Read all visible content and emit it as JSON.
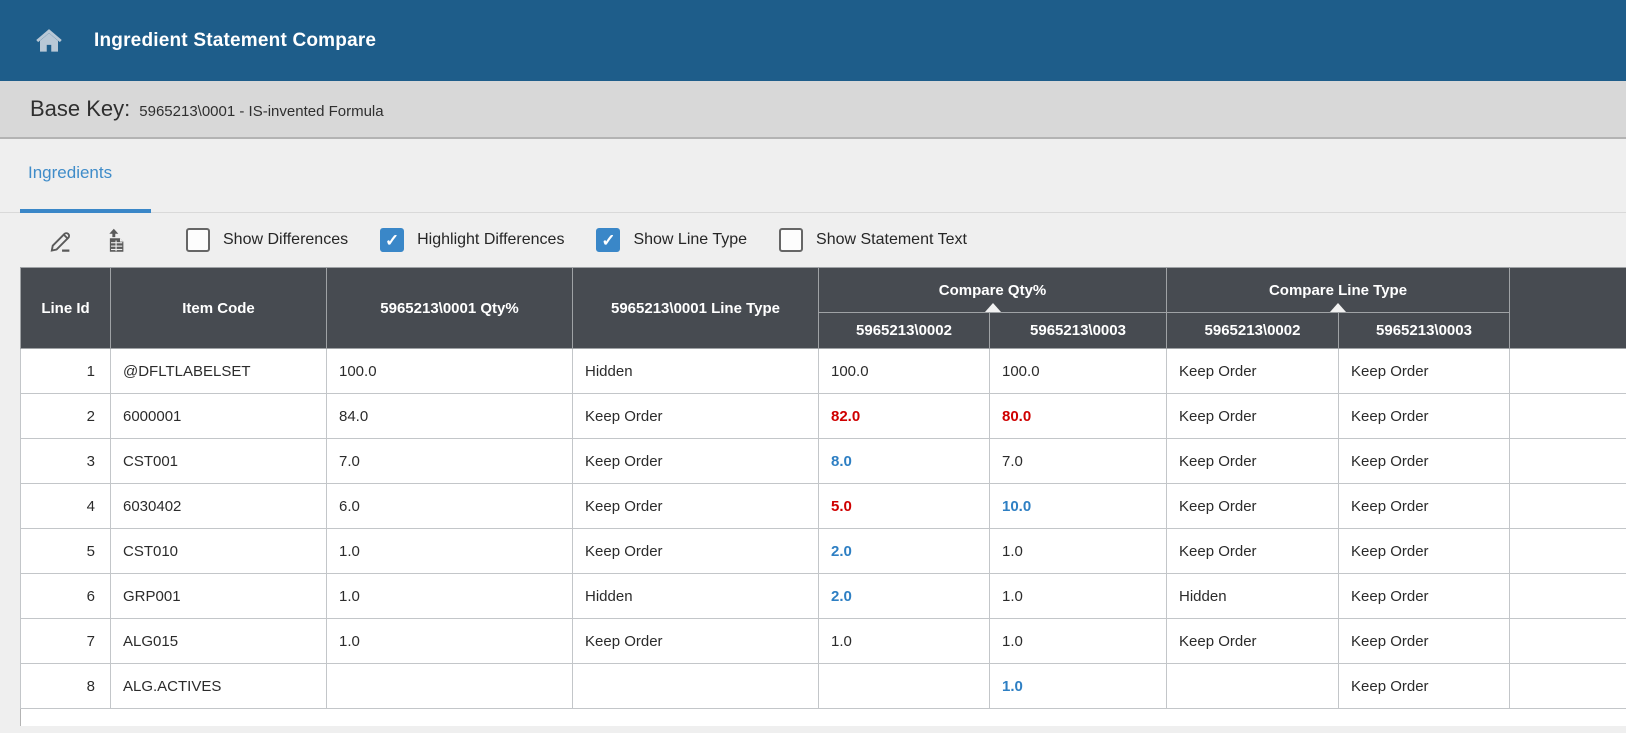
{
  "app": {
    "title": "Ingredient Statement Compare"
  },
  "base_key": {
    "label": "Base Key:",
    "value": "5965213\\0001 - IS-invented Formula"
  },
  "tabs": [
    {
      "label": "Ingredients",
      "active": true
    }
  ],
  "toolbar": {
    "buttons": [
      {
        "name": "edit"
      },
      {
        "name": "export-spreadsheet"
      }
    ],
    "checkboxes": [
      {
        "label": "Show Differences",
        "checked": false
      },
      {
        "label": "Highlight Differences",
        "checked": true
      },
      {
        "label": "Show Line Type",
        "checked": true
      },
      {
        "label": "Show Statement Text",
        "checked": false
      }
    ]
  },
  "colors": {
    "header_blue": "#1e5d8a",
    "accent_blue": "#3a87c8",
    "table_header_gray": "#474b51",
    "diff_higher_blue": "#2e7fc3",
    "diff_lower_red": "#cf0000"
  },
  "table": {
    "columns": [
      "Line Id",
      "Item Code",
      "5965213\\0001 Qty%",
      "5965213\\0001 Line Type"
    ],
    "groups": [
      {
        "label": "Compare Qty%",
        "children": [
          "5965213\\0002",
          "5965213\\0003"
        ]
      },
      {
        "label": "Compare Line Type",
        "children": [
          "5965213\\0002",
          "5965213\\0003"
        ]
      }
    ],
    "rows": [
      {
        "line_id": "1",
        "item_code": "@DFLTLABELSET",
        "qty": "100.0",
        "line_type": "Hidden",
        "compare_qty": [
          {
            "v": "100.0",
            "diff": ""
          },
          {
            "v": "100.0",
            "diff": ""
          }
        ],
        "compare_line_type": [
          {
            "v": "Keep Order",
            "diff": ""
          },
          {
            "v": "Keep Order",
            "diff": ""
          }
        ]
      },
      {
        "line_id": "2",
        "item_code": "6000001",
        "qty": "84.0",
        "line_type": "Keep Order",
        "compare_qty": [
          {
            "v": "82.0",
            "diff": "lower"
          },
          {
            "v": "80.0",
            "diff": "lower"
          }
        ],
        "compare_line_type": [
          {
            "v": "Keep Order",
            "diff": ""
          },
          {
            "v": "Keep Order",
            "diff": ""
          }
        ]
      },
      {
        "line_id": "3",
        "item_code": "CST001",
        "qty": "7.0",
        "line_type": "Keep Order",
        "compare_qty": [
          {
            "v": "8.0",
            "diff": "higher"
          },
          {
            "v": "7.0",
            "diff": ""
          }
        ],
        "compare_line_type": [
          {
            "v": "Keep Order",
            "diff": ""
          },
          {
            "v": "Keep Order",
            "diff": ""
          }
        ]
      },
      {
        "line_id": "4",
        "item_code": "6030402",
        "qty": "6.0",
        "line_type": "Keep Order",
        "compare_qty": [
          {
            "v": "5.0",
            "diff": "lower"
          },
          {
            "v": "10.0",
            "diff": "higher"
          }
        ],
        "compare_line_type": [
          {
            "v": "Keep Order",
            "diff": ""
          },
          {
            "v": "Keep Order",
            "diff": ""
          }
        ]
      },
      {
        "line_id": "5",
        "item_code": "CST010",
        "qty": "1.0",
        "line_type": "Keep Order",
        "compare_qty": [
          {
            "v": "2.0",
            "diff": "higher"
          },
          {
            "v": "1.0",
            "diff": ""
          }
        ],
        "compare_line_type": [
          {
            "v": "Keep Order",
            "diff": ""
          },
          {
            "v": "Keep Order",
            "diff": ""
          }
        ]
      },
      {
        "line_id": "6",
        "item_code": "GRP001",
        "qty": "1.0",
        "line_type": "Hidden",
        "compare_qty": [
          {
            "v": "2.0",
            "diff": "higher"
          },
          {
            "v": "1.0",
            "diff": ""
          }
        ],
        "compare_line_type": [
          {
            "v": "Hidden",
            "diff": ""
          },
          {
            "v": "Keep Order",
            "diff": ""
          }
        ]
      },
      {
        "line_id": "7",
        "item_code": "ALG015",
        "qty": "1.0",
        "line_type": "Keep Order",
        "compare_qty": [
          {
            "v": "1.0",
            "diff": ""
          },
          {
            "v": "1.0",
            "diff": ""
          }
        ],
        "compare_line_type": [
          {
            "v": "Keep Order",
            "diff": ""
          },
          {
            "v": "Keep Order",
            "diff": ""
          }
        ]
      },
      {
        "line_id": "8",
        "item_code": "ALG.ACTIVES",
        "qty": "",
        "line_type": "",
        "compare_qty": [
          {
            "v": "",
            "diff": ""
          },
          {
            "v": "1.0",
            "diff": "higher"
          }
        ],
        "compare_line_type": [
          {
            "v": "",
            "diff": ""
          },
          {
            "v": "Keep Order",
            "diff": ""
          }
        ]
      }
    ]
  }
}
